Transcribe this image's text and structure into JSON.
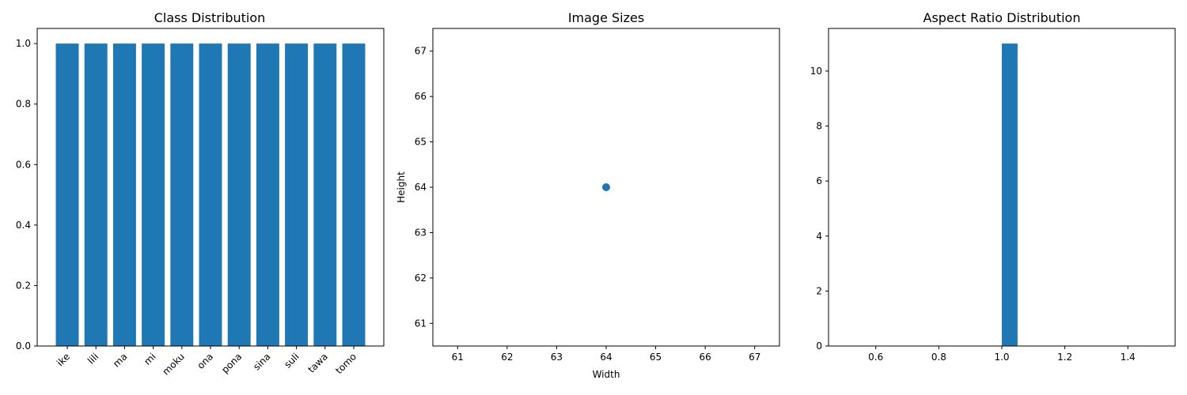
{
  "chart_data": [
    {
      "type": "bar",
      "title": "Class Distribution",
      "xlabel": "",
      "ylabel": "",
      "categories": [
        "ike",
        "lili",
        "ma",
        "mi",
        "moku",
        "ona",
        "pona",
        "sina",
        "suli",
        "tawa",
        "tomo"
      ],
      "values": [
        1,
        1,
        1,
        1,
        1,
        1,
        1,
        1,
        1,
        1,
        1
      ],
      "ylim": [
        0,
        1.05
      ],
      "yticks": [
        "0.0",
        "0.2",
        "0.4",
        "0.6",
        "0.8",
        "1.0"
      ],
      "grid": false,
      "color": "#1f77b4"
    },
    {
      "type": "scatter",
      "title": "Image Sizes",
      "xlabel": "Width",
      "ylabel": "Height",
      "points": [
        {
          "x": 64,
          "y": 64
        }
      ],
      "xlim": [
        60.5,
        67.5
      ],
      "ylim": [
        60.5,
        67.5
      ],
      "xticks": [
        "61",
        "62",
        "63",
        "64",
        "65",
        "66",
        "67"
      ],
      "yticks": [
        "61",
        "62",
        "63",
        "64",
        "65",
        "66",
        "67"
      ],
      "grid": false,
      "color": "#1f77b4"
    },
    {
      "type": "bar",
      "title": "Aspect Ratio Distribution",
      "xlabel": "",
      "ylabel": "",
      "bins": [
        {
          "from": 1.0,
          "to": 1.05,
          "count": 11
        }
      ],
      "xlim": [
        0.45,
        1.55
      ],
      "ylim": [
        0,
        11.55
      ],
      "xticks": [
        "0.6",
        "0.8",
        "1.0",
        "1.2",
        "1.4"
      ],
      "yticks": [
        "0",
        "2",
        "4",
        "6",
        "8",
        "10"
      ],
      "grid": false,
      "color": "#1f77b4"
    }
  ]
}
